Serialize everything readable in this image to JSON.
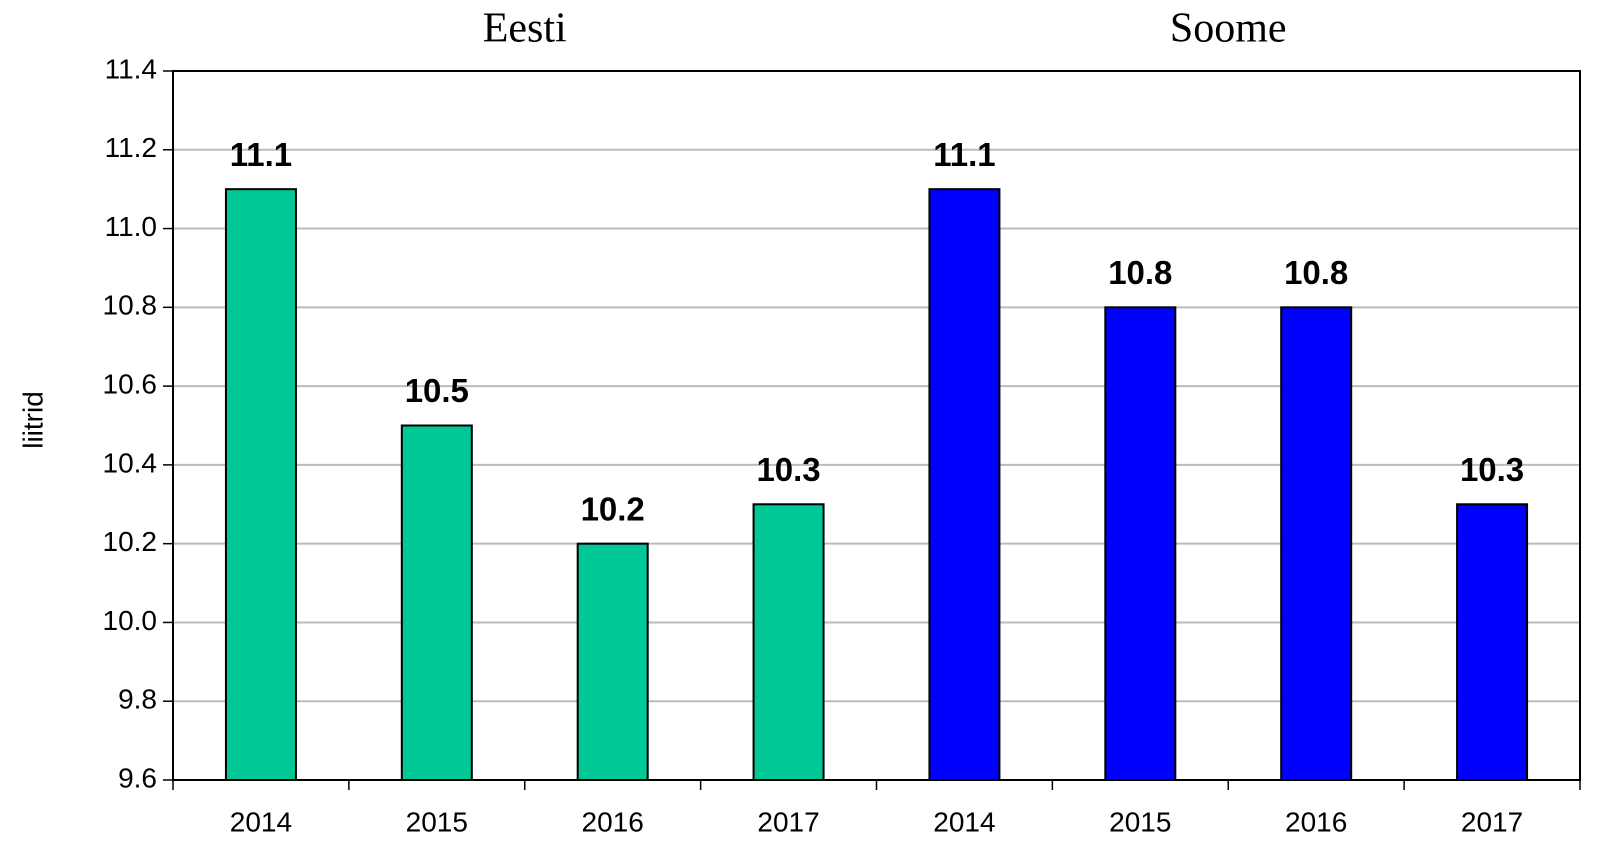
{
  "chart_data": {
    "type": "bar",
    "y_label": "liitrid",
    "groups": [
      {
        "name": "Eesti",
        "color": "#00c896",
        "categories": [
          "2014",
          "2015",
          "2016",
          "2017"
        ],
        "values": [
          11.1,
          10.5,
          10.2,
          10.3
        ]
      },
      {
        "name": "Soome",
        "color": "#0000ff",
        "categories": [
          "2014",
          "2015",
          "2016",
          "2017"
        ],
        "values": [
          11.1,
          10.8,
          10.8,
          10.3
        ]
      }
    ],
    "ylim": [
      9.6,
      11.4
    ],
    "yticks": [
      9.6,
      9.8,
      {
        "value": 10,
        "label": "10.0"
      },
      10.2,
      10.4,
      10.6,
      10.8,
      {
        "value": 11,
        "label": "11.0"
      },
      11.2,
      11.4
    ],
    "grid": true
  }
}
